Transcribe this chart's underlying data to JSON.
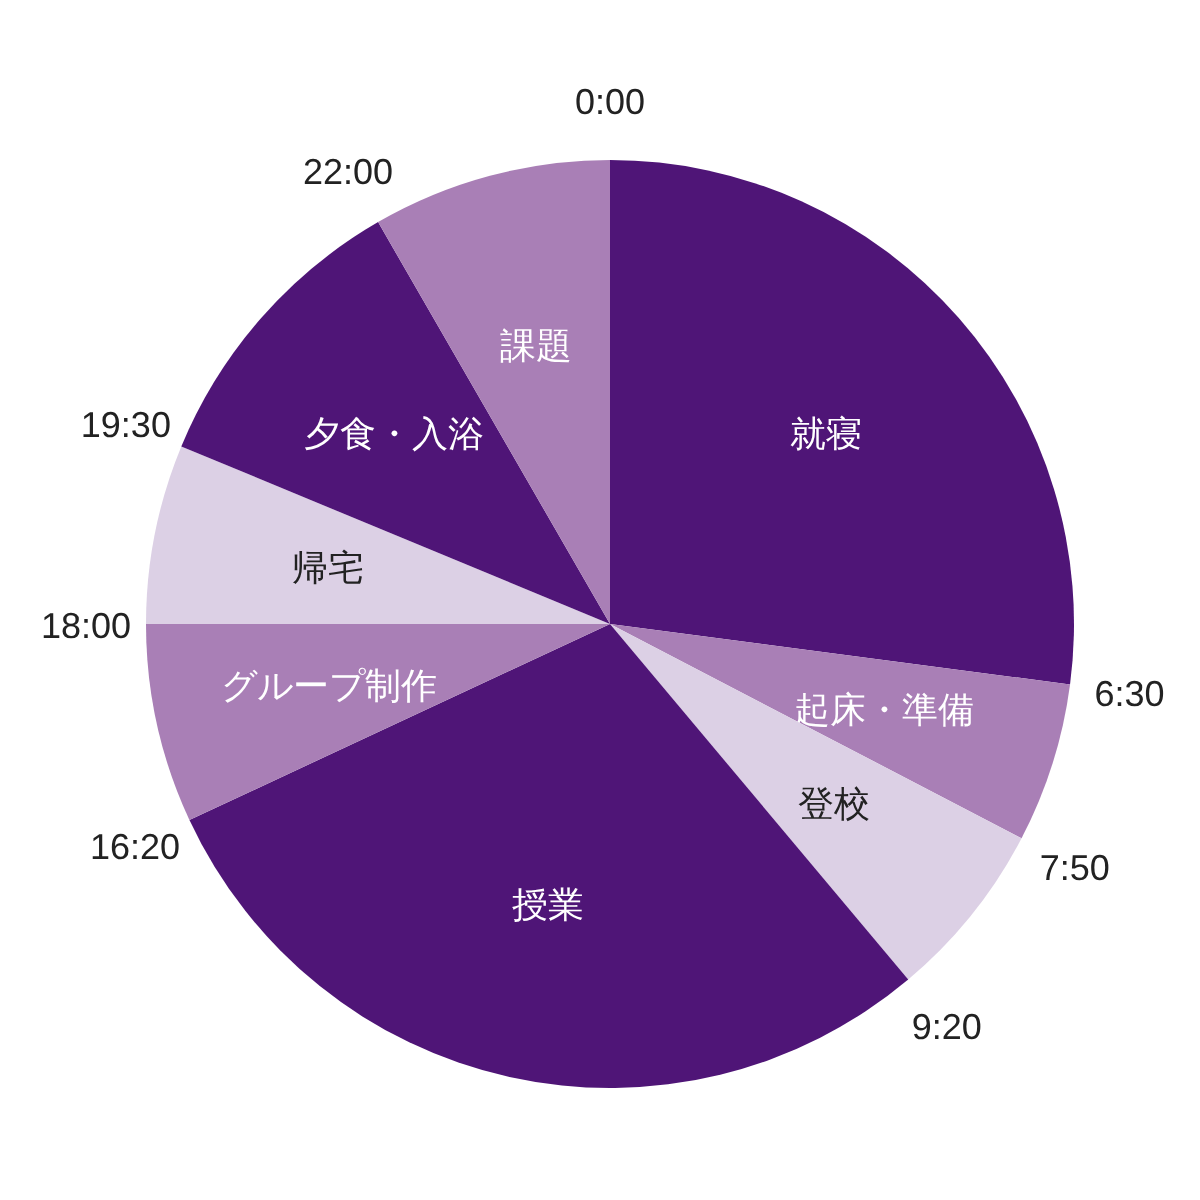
{
  "chart_data": {
    "type": "pie",
    "categories": [
      "就寝",
      "起床・準備",
      "登校",
      "授業",
      "グループ制作",
      "帰宅",
      "夕食・入浴",
      "課題"
    ],
    "values": [
      27.08,
      5.56,
      6.25,
      29.17,
      6.94,
      6.25,
      10.42,
      8.33
    ],
    "colors": [
      "#4f1577",
      "#a97fb6",
      "#dcd0e5",
      "#4f1577",
      "#a97fb6",
      "#dcd0e5",
      "#4f1577",
      "#a97fb6"
    ],
    "annotations": [
      "0:00",
      "6:30",
      "7:50",
      "9:20",
      "16:20",
      "18:00",
      "19:30",
      "22:00"
    ]
  }
}
